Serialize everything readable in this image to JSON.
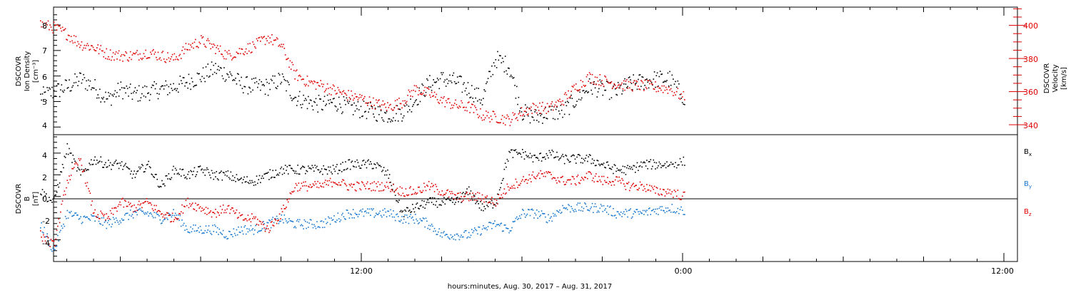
{
  "chart_data": [
    {
      "type": "scatter",
      "panel": "plasma",
      "ylabel_left": [
        "DSCOVR",
        "Ion Density",
        "[cm⁻³]"
      ],
      "ylabel_right": [
        "DSCOVR",
        "Velocity",
        "[km/s]"
      ],
      "ylim_left": [
        3.7,
        8.7
      ],
      "ylim_right": [
        334,
        411
      ],
      "yticks_left": [
        "4",
        "5",
        "6",
        "7",
        "8"
      ],
      "yticks_right": [
        "340",
        "360",
        "380",
        "400"
      ],
      "colors": {
        "density": "#000000",
        "velocity": "#e00000"
      },
      "series": [
        {
          "name": "Ion Density",
          "axis": "left",
          "color": "#000000",
          "x_hours": [
            0,
            0.5,
            1,
            1.5,
            2,
            2.5,
            3,
            3.5,
            4,
            4.5,
            5,
            5.5,
            6,
            6.5,
            7,
            7.5,
            8,
            8.5,
            9,
            9.5,
            10,
            10.5,
            11,
            11.5,
            12,
            12.5,
            13,
            13.5,
            14,
            14.5,
            15,
            15.5,
            16,
            16.5,
            17,
            17.5,
            18,
            18.5,
            19,
            19.5,
            20,
            20.5,
            21,
            21.5,
            22,
            22.5,
            23,
            23.5,
            24.1
          ],
          "values": [
            5.2,
            5.4,
            5.6,
            5.9,
            5.6,
            5.1,
            5.5,
            5.3,
            5.4,
            5.5,
            5.6,
            5.8,
            6.0,
            6.3,
            6.1,
            5.7,
            5.6,
            5.6,
            5.9,
            5.2,
            5.0,
            4.9,
            5.0,
            4.8,
            4.7,
            4.6,
            4.5,
            4.6,
            5.1,
            5.7,
            5.9,
            5.8,
            5.5,
            5.1,
            6.7,
            6.4,
            4.6,
            4.4,
            4.6,
            4.6,
            5.1,
            5.6,
            5.5,
            5.4,
            5.7,
            5.8,
            5.9,
            5.9,
            5.1
          ]
        },
        {
          "name": "Velocity",
          "axis": "right",
          "color": "#e00000",
          "x_hours": [
            0,
            0.5,
            1,
            1.5,
            2,
            2.5,
            3,
            3.5,
            4,
            4.5,
            5,
            5.5,
            6,
            6.5,
            7,
            7.5,
            8,
            8.5,
            9,
            9.5,
            10,
            10.5,
            11,
            11.5,
            12,
            12.5,
            13,
            13.5,
            14,
            14.5,
            15,
            15.5,
            16,
            16.5,
            17,
            17.5,
            18,
            18.5,
            19,
            19.5,
            20,
            20.5,
            21,
            21.5,
            22,
            22.5,
            23,
            23.5,
            24.1
          ],
          "values": [
            401,
            399,
            395,
            389,
            387,
            383,
            382,
            382,
            384,
            382,
            380,
            387,
            391,
            387,
            382,
            385,
            388,
            393,
            388,
            371,
            366,
            364,
            361,
            358,
            356,
            353,
            351,
            354,
            362,
            359,
            355,
            352,
            351,
            346,
            345,
            343,
            348,
            351,
            350,
            355,
            363,
            369,
            367,
            365,
            364,
            364,
            363,
            362,
            356
          ]
        }
      ]
    },
    {
      "type": "scatter",
      "panel": "magnetic-field",
      "ylabel_left": [
        "DSCOVR",
        "B",
        "[nT]"
      ],
      "ylim": [
        -6,
        5.7
      ],
      "yticks": [
        "-4",
        "-2",
        "0",
        "2",
        "4"
      ],
      "xlabel": "hours:minutes, Aug. 30, 2017 – Aug. 31, 2017",
      "xticks": [
        "12:00",
        "0:00",
        "12:00"
      ],
      "legend": {
        "placement": "right",
        "entries": [
          "B",
          "B",
          "B"
        ],
        "subscripts": [
          "x",
          "y",
          "z"
        ]
      },
      "series": [
        {
          "name": "Bx",
          "color": "#000000",
          "x_hours": [
            0,
            0.5,
            1,
            1.5,
            2,
            2.5,
            3,
            3.5,
            4,
            4.5,
            5,
            5.5,
            6,
            6.5,
            7,
            7.5,
            8,
            8.5,
            9,
            9.5,
            10,
            10.5,
            11,
            11.5,
            12,
            12.5,
            13,
            13.5,
            14,
            14.5,
            15,
            15.5,
            16,
            16.5,
            17,
            17.5,
            18,
            18.5,
            19,
            19.5,
            20,
            20.5,
            21,
            21.5,
            22,
            22.5,
            23,
            23.5,
            24.1
          ],
          "values": [
            0.5,
            -0.5,
            4.5,
            2.0,
            3.5,
            3.0,
            3.0,
            2.0,
            3.0,
            1.0,
            2.5,
            2.0,
            2.5,
            2.0,
            2.0,
            1.5,
            1.5,
            2.0,
            2.5,
            2.5,
            2.5,
            2.5,
            2.5,
            3.0,
            3.0,
            3.0,
            2.0,
            -1.5,
            -1.0,
            -0.5,
            -0.5,
            -0.5,
            0.5,
            -1.0,
            -0.5,
            4.0,
            4.0,
            3.5,
            4.0,
            3.5,
            3.5,
            3.5,
            3.0,
            2.5,
            2.5,
            3.0,
            3.0,
            3.0,
            3.3
          ]
        },
        {
          "name": "By",
          "color": "#1878d0",
          "x_hours": [
            0,
            0.5,
            1,
            1.5,
            2,
            2.5,
            3,
            3.5,
            4,
            4.5,
            5,
            5.5,
            6,
            6.5,
            7,
            7.5,
            8,
            8.5,
            9,
            9.5,
            10,
            10.5,
            11,
            11.5,
            12,
            12.5,
            13,
            13.5,
            14,
            14.5,
            15,
            15.5,
            16,
            16.5,
            17,
            17.5,
            18,
            18.5,
            19,
            19.5,
            20,
            20.5,
            21,
            21.5,
            22,
            22.5,
            23,
            23.5,
            24.1
          ],
          "values": [
            -2.5,
            -5.0,
            -1.5,
            -2.0,
            -2.0,
            -2.5,
            -2.0,
            -1.5,
            -1.5,
            -2.0,
            -1.5,
            -3.0,
            -3.0,
            -3.0,
            -3.5,
            -3.0,
            -3.0,
            -2.5,
            -2.0,
            -2.5,
            -2.5,
            -2.5,
            -2.0,
            -1.5,
            -1.5,
            -1.5,
            -1.5,
            -2.0,
            -2.0,
            -2.5,
            -3.5,
            -3.5,
            -3.5,
            -3.0,
            -2.5,
            -3.0,
            -1.5,
            -1.5,
            -2.0,
            -1.0,
            -1.0,
            -1.0,
            -1.0,
            -1.5,
            -1.5,
            -1.5,
            -1.2,
            -1.0,
            -1.3
          ]
        },
        {
          "name": "Bz",
          "color": "#e00000",
          "x_hours": [
            0,
            0.5,
            1,
            1.5,
            2,
            2.5,
            3,
            3.5,
            4,
            4.5,
            5,
            5.5,
            6,
            6.5,
            7,
            7.5,
            8,
            8.5,
            9,
            9.5,
            10,
            10.5,
            11,
            11.5,
            12,
            12.5,
            13,
            13.5,
            14,
            14.5,
            15,
            15.5,
            16,
            16.5,
            17,
            17.5,
            18,
            18.5,
            19,
            19.5,
            20,
            20.5,
            21,
            21.5,
            22,
            22.5,
            23,
            23.5,
            24.1
          ],
          "values": [
            -3.5,
            -4.5,
            1.5,
            3.5,
            -1.5,
            -2.0,
            -0.5,
            -1.0,
            -0.5,
            -1.5,
            -2.0,
            -0.5,
            -1.0,
            -1.5,
            -1.0,
            -2.0,
            -2.0,
            -3.0,
            -1.5,
            1.0,
            1.0,
            1.0,
            1.5,
            1.0,
            1.0,
            1.0,
            1.0,
            0.5,
            0.5,
            1.0,
            0.5,
            0.0,
            0.0,
            0.0,
            -0.5,
            1.0,
            1.5,
            2.0,
            2.0,
            1.5,
            1.5,
            2.0,
            1.5,
            1.5,
            1.0,
            1.0,
            0.5,
            0.5,
            0.0
          ]
        }
      ]
    }
  ]
}
